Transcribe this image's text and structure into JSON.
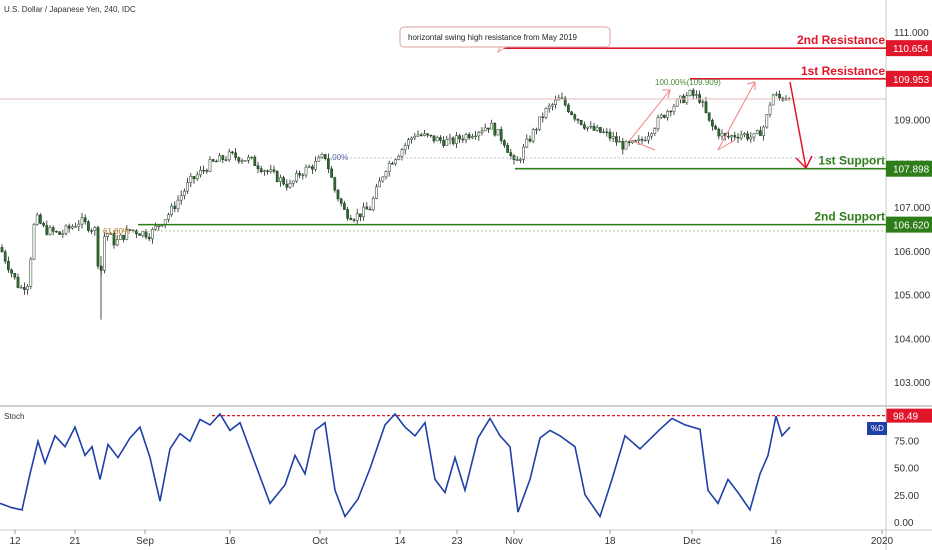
{
  "header": {
    "symbol_title": "U.S. Dollar / Japanese Yen, 240, IDC"
  },
  "indicator": {
    "name": "Stoch",
    "legend": "%D"
  },
  "annotation": {
    "callout": "horizontal swing high resistance from May 2019"
  },
  "colors": {
    "resistance": "#e0162b",
    "support": "#2e7d1a",
    "candle_up": "#ffffff",
    "candle_down": "#2e6b2e",
    "wick": "#222222",
    "stoch_line": "#1e40a8",
    "fib": "#b0b0b0",
    "projection": "#f08080"
  },
  "chart_data": {
    "type": "candlestick",
    "price_axis": {
      "ticks": [
        111.0,
        110.0,
        109.0,
        108.0,
        107.0,
        106.0,
        105.0,
        104.0,
        103.0
      ],
      "tick_labels": [
        "111.000",
        "110.000",
        "109.000",
        "108.000",
        "107.000",
        "106.000",
        "105.000",
        "104.000",
        "103.000"
      ],
      "range": [
        102.5,
        111.6
      ]
    },
    "time_axis": {
      "labels": [
        "12",
        "21",
        "Sep",
        "16",
        "Oct",
        "14",
        "23",
        "Nov",
        "18",
        "Dec",
        "16",
        "2020"
      ]
    },
    "levels": [
      {
        "label": "2nd Resistance",
        "value": 110.654,
        "value_label": "110.654",
        "kind": "resistance"
      },
      {
        "label": "1st Resistance",
        "value": 109.953,
        "value_label": "109.953",
        "kind": "resistance"
      },
      {
        "label": "1st Support",
        "value": 107.898,
        "value_label": "107.898",
        "kind": "support"
      },
      {
        "label": "2nd Support",
        "value": 106.62,
        "value_label": "106.620",
        "kind": "support"
      }
    ],
    "fib_labels": [
      "100.00%(109.909)",
      "61.80%",
      ".00%"
    ],
    "stoch": {
      "ticks": [
        100,
        75,
        50,
        25,
        0
      ],
      "tick_labels": [
        "75.00",
        "50.00",
        "25.00",
        "0.00"
      ],
      "level": 98.49,
      "level_label": "98.49"
    }
  }
}
